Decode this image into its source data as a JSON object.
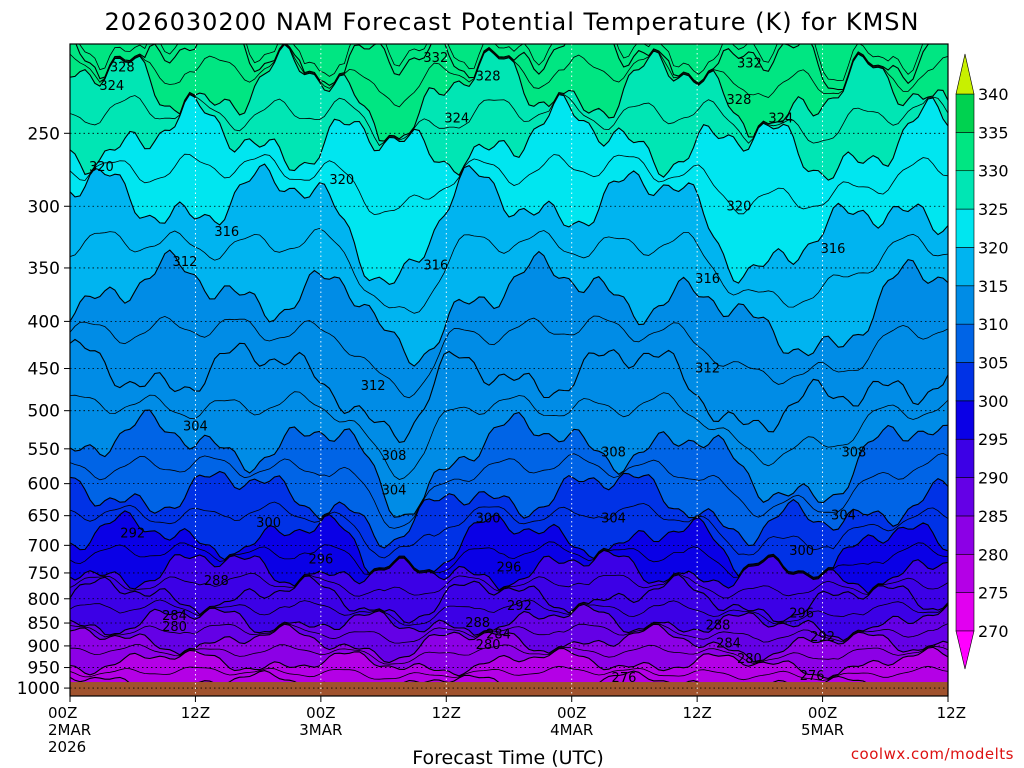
{
  "chart_data": {
    "type": "heatmap",
    "title": "2026030200 NAM Forecast Potential Temperature (K) for KMSN",
    "xlabel": "Forecast Time (UTC)",
    "ylabel": "",
    "credit": "coolwx.com/modelts",
    "y_scale": "log-pressure",
    "y_range": [
      1020,
      200
    ],
    "y_ticks": [
      "250",
      "300",
      "350",
      "400",
      "450",
      "500",
      "550",
      "600",
      "650",
      "700",
      "750",
      "800",
      "850",
      "900",
      "950",
      "1000"
    ],
    "y_tick_values": [
      250,
      300,
      350,
      400,
      450,
      500,
      550,
      600,
      650,
      700,
      750,
      800,
      850,
      900,
      950,
      1000
    ],
    "x_range_hours": [
      0,
      84
    ],
    "x_ticks": [
      {
        "line1": "00Z",
        "line2": "2MAR",
        "line3": "2026",
        "hour": 0
      },
      {
        "line1": "12Z",
        "line2": "",
        "line3": "",
        "hour": 12
      },
      {
        "line1": "00Z",
        "line2": "3MAR",
        "line3": "",
        "hour": 24
      },
      {
        "line1": "12Z",
        "line2": "",
        "line3": "",
        "hour": 36
      },
      {
        "line1": "00Z",
        "line2": "4MAR",
        "line3": "",
        "hour": 48
      },
      {
        "line1": "12Z",
        "line2": "",
        "line3": "",
        "hour": 60
      },
      {
        "line1": "00Z",
        "line2": "5MAR",
        "line3": "",
        "hour": 72
      },
      {
        "line1": "12Z",
        "line2": "",
        "line3": "",
        "hour": 84
      }
    ],
    "grid": true,
    "legend": "right colorbar",
    "colorbar": {
      "levels": [
        270,
        275,
        280,
        285,
        290,
        295,
        300,
        305,
        310,
        315,
        320,
        325,
        330,
        335,
        340
      ],
      "labels": [
        "270",
        "275",
        "280",
        "285",
        "290",
        "295",
        "300",
        "305",
        "310",
        "315",
        "320",
        "325",
        "330",
        "335",
        "340"
      ],
      "colors": [
        "#ff00ff",
        "#e100f0",
        "#b400e6",
        "#8c00e6",
        "#6400e6",
        "#3c00e6",
        "#0a00e6",
        "#0032e6",
        "#0064e6",
        "#008ce6",
        "#00b4f0",
        "#00e6f0",
        "#00e6b4",
        "#00e682",
        "#00d250",
        "#82e600",
        "#c8f000"
      ]
    },
    "contour_levels": [
      276,
      280,
      284,
      288,
      292,
      296,
      300,
      304,
      308,
      312,
      316,
      320,
      324,
      328,
      332
    ],
    "contour_baseline_pressure": {
      "276": 985,
      "280": 935,
      "284": 888,
      "288": 845,
      "292": 795,
      "296": 742,
      "300": 685,
      "304": 612,
      "308": 540,
      "312": 452,
      "316": 368,
      "320": 295,
      "324": 252,
      "328": 223,
      "332": 205
    },
    "contour_labels": [
      {
        "text": "328",
        "hour": 5,
        "p": 212
      },
      {
        "text": "324",
        "hour": 4,
        "p": 222
      },
      {
        "text": "332",
        "hour": 35,
        "p": 207
      },
      {
        "text": "328",
        "hour": 40,
        "p": 217
      },
      {
        "text": "332",
        "hour": 65,
        "p": 210
      },
      {
        "text": "328",
        "hour": 64,
        "p": 230
      },
      {
        "text": "324",
        "hour": 37,
        "p": 241
      },
      {
        "text": "324",
        "hour": 68,
        "p": 241
      },
      {
        "text": "320",
        "hour": 3,
        "p": 272
      },
      {
        "text": "320",
        "hour": 26,
        "p": 281
      },
      {
        "text": "320",
        "hour": 64,
        "p": 300
      },
      {
        "text": "316",
        "hour": 15,
        "p": 320
      },
      {
        "text": "316",
        "hour": 35,
        "p": 348
      },
      {
        "text": "316",
        "hour": 61,
        "p": 360
      },
      {
        "text": "316",
        "hour": 73,
        "p": 334
      },
      {
        "text": "312",
        "hour": 11,
        "p": 345
      },
      {
        "text": "312",
        "hour": 29,
        "p": 470
      },
      {
        "text": "312",
        "hour": 61,
        "p": 450
      },
      {
        "text": "304",
        "hour": 12,
        "p": 520
      },
      {
        "text": "308",
        "hour": 31,
        "p": 560
      },
      {
        "text": "308",
        "hour": 52,
        "p": 555
      },
      {
        "text": "308",
        "hour": 75,
        "p": 555
      },
      {
        "text": "304",
        "hour": 31,
        "p": 610
      },
      {
        "text": "304",
        "hour": 52,
        "p": 655
      },
      {
        "text": "304",
        "hour": 74,
        "p": 650
      },
      {
        "text": "300",
        "hour": 19,
        "p": 662
      },
      {
        "text": "300",
        "hour": 40,
        "p": 655
      },
      {
        "text": "300",
        "hour": 70,
        "p": 710
      },
      {
        "text": "292",
        "hour": 6,
        "p": 680
      },
      {
        "text": "296",
        "hour": 24,
        "p": 725
      },
      {
        "text": "296",
        "hour": 42,
        "p": 740
      },
      {
        "text": "296",
        "hour": 70,
        "p": 830
      },
      {
        "text": "288",
        "hour": 14,
        "p": 765
      },
      {
        "text": "292",
        "hour": 43,
        "p": 815
      },
      {
        "text": "288",
        "hour": 39,
        "p": 850
      },
      {
        "text": "288",
        "hour": 62,
        "p": 855
      },
      {
        "text": "284",
        "hour": 10,
        "p": 835
      },
      {
        "text": "280",
        "hour": 10,
        "p": 858
      },
      {
        "text": "284",
        "hour": 41,
        "p": 875
      },
      {
        "text": "280",
        "hour": 40,
        "p": 898
      },
      {
        "text": "284",
        "hour": 63,
        "p": 895
      },
      {
        "text": "292",
        "hour": 72,
        "p": 880
      },
      {
        "text": "280",
        "hour": 65,
        "p": 930
      },
      {
        "text": "276",
        "hour": 53,
        "p": 975
      },
      {
        "text": "276",
        "hour": 71,
        "p": 970
      }
    ]
  }
}
